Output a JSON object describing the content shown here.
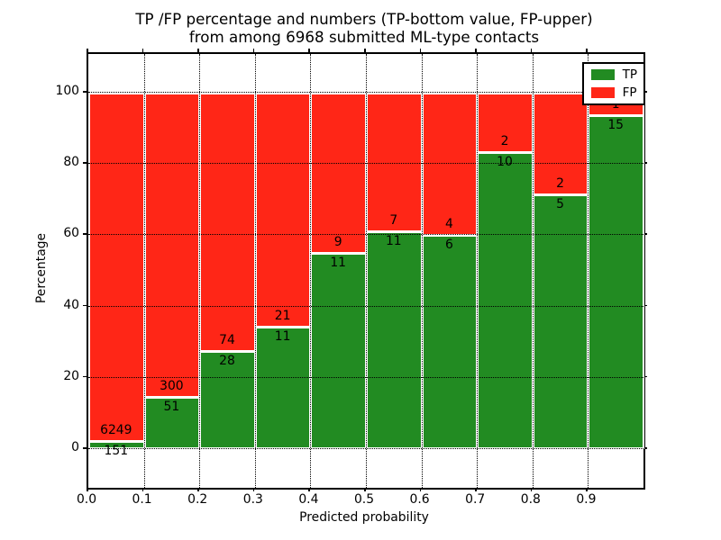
{
  "title": {
    "line1": "TP /FP percentage and numbers (TP-bottom value, FP-upper)",
    "line2": "from among 6968 submitted ML-type contacts"
  },
  "chart_data": {
    "type": "bar",
    "subtype": "stacked-percentage-histogram",
    "title": "TP /FP percentage and numbers (TP-bottom value, FP-upper) from among 6968 submitted ML-type contacts",
    "xlabel": "Predicted probability",
    "ylabel": "Percentage",
    "total_contacts": 6968,
    "bins": [
      "0.0-0.1",
      "0.1-0.2",
      "0.2-0.3",
      "0.3-0.4",
      "0.4-0.5",
      "0.5-0.6",
      "0.6-0.7",
      "0.7-0.8",
      "0.8-0.9",
      "0.9-1.0"
    ],
    "x_tick_labels": [
      "0.0",
      "0.1",
      "0.2",
      "0.3",
      "0.4",
      "0.5",
      "0.6",
      "0.7",
      "0.8",
      "0.9"
    ],
    "y_tick_values": [
      0,
      20,
      40,
      60,
      80,
      100
    ],
    "xlim": [
      0.0,
      1.0
    ],
    "ylim": [
      -10.9,
      110.9
    ],
    "grid": "dotted-black-both-axes",
    "legend_position": "upper right",
    "bar_edge_color": "#ffffff",
    "series": [
      {
        "name": "TP",
        "color": "#228b22",
        "counts": [
          151,
          51,
          28,
          11,
          11,
          11,
          6,
          10,
          5,
          15
        ]
      },
      {
        "name": "FP",
        "color": "#ff2617",
        "counts": [
          6249,
          300,
          74,
          21,
          9,
          7,
          4,
          2,
          2,
          1
        ]
      }
    ],
    "tp_percent_per_bin": [
      2.36,
      14.53,
      27.45,
      34.38,
      55.0,
      61.11,
      60.0,
      83.33,
      71.43,
      93.75
    ],
    "fp_percent_per_bin": [
      97.64,
      85.47,
      72.55,
      65.62,
      45.0,
      38.89,
      40.0,
      16.67,
      28.57,
      6.25
    ]
  },
  "legend": {
    "items": [
      {
        "label": "TP",
        "color": "#228b22"
      },
      {
        "label": "FP",
        "color": "#ff2617"
      }
    ]
  }
}
